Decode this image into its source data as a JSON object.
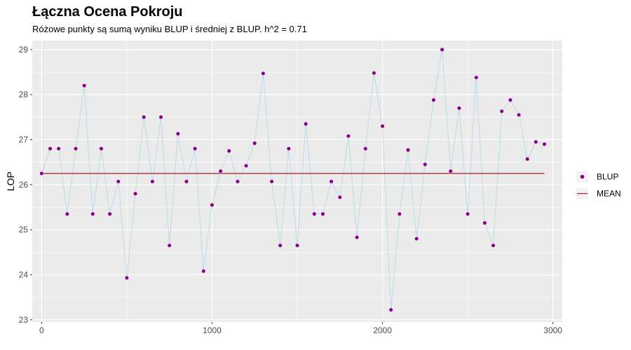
{
  "header": {
    "title": "Łączna Ocena Pokroju",
    "subtitle": "Różowe punkty są sumą wyniku BLUP i średniej z BLUP. h^2 = 0.71"
  },
  "colors": {
    "panel_bg": "#EBEBEB",
    "grid": "#FFFFFF",
    "points": "#8B008B",
    "line": "#ADD8E6",
    "mean_line": "#B2182B"
  },
  "chart_data": {
    "type": "line",
    "title": "Łączna Ocena Pokroju",
    "subtitle": "Różowe punkty są sumą wyniku BLUP i średniej z BLUP. h^2 = 0.71",
    "xlabel": "",
    "ylabel": "LOP",
    "xlim": [
      -55,
      3055
    ],
    "ylim": [
      22.95,
      29.2
    ],
    "x_ticks": [
      0,
      1000,
      2000,
      3000
    ],
    "y_ticks": [
      23,
      24,
      25,
      26,
      27,
      28,
      29
    ],
    "grid": true,
    "legend_position": "right",
    "legend": [
      {
        "label": "BLUP",
        "kind": "point"
      },
      {
        "label": "MEAN",
        "kind": "line"
      }
    ],
    "series": [
      {
        "name": "BLUP",
        "x": [
          0,
          50,
          100,
          150,
          200,
          250,
          300,
          350,
          400,
          450,
          500,
          550,
          600,
          650,
          700,
          750,
          800,
          850,
          900,
          950,
          1000,
          1050,
          1100,
          1150,
          1200,
          1250,
          1300,
          1350,
          1400,
          1450,
          1500,
          1550,
          1600,
          1650,
          1700,
          1750,
          1800,
          1850,
          1900,
          1950,
          2000,
          2050,
          2100,
          2150,
          2200,
          2250,
          2300,
          2350,
          2400,
          2450,
          2500,
          2550,
          2600,
          2650,
          2700,
          2750,
          2800,
          2850,
          2900,
          2950
        ],
        "y": [
          26.25,
          26.8,
          26.8,
          25.35,
          26.8,
          28.2,
          25.35,
          26.8,
          25.35,
          26.07,
          23.93,
          25.8,
          27.5,
          26.07,
          27.5,
          24.65,
          27.13,
          26.07,
          26.8,
          24.08,
          25.55,
          26.3,
          26.75,
          26.07,
          26.42,
          26.92,
          28.47,
          26.07,
          24.65,
          26.8,
          24.65,
          27.35,
          25.35,
          25.35,
          26.07,
          25.72,
          27.08,
          24.83,
          26.8,
          28.48,
          27.3,
          23.22,
          25.35,
          26.77,
          24.8,
          26.45,
          27.88,
          29.0,
          26.3,
          27.7,
          25.35,
          28.38,
          25.15,
          24.65,
          27.63,
          27.88,
          27.55,
          26.57,
          26.95,
          26.9
        ]
      },
      {
        "name": "MEAN",
        "x": [
          0,
          2950
        ],
        "y": [
          26.25,
          26.25
        ]
      }
    ]
  }
}
